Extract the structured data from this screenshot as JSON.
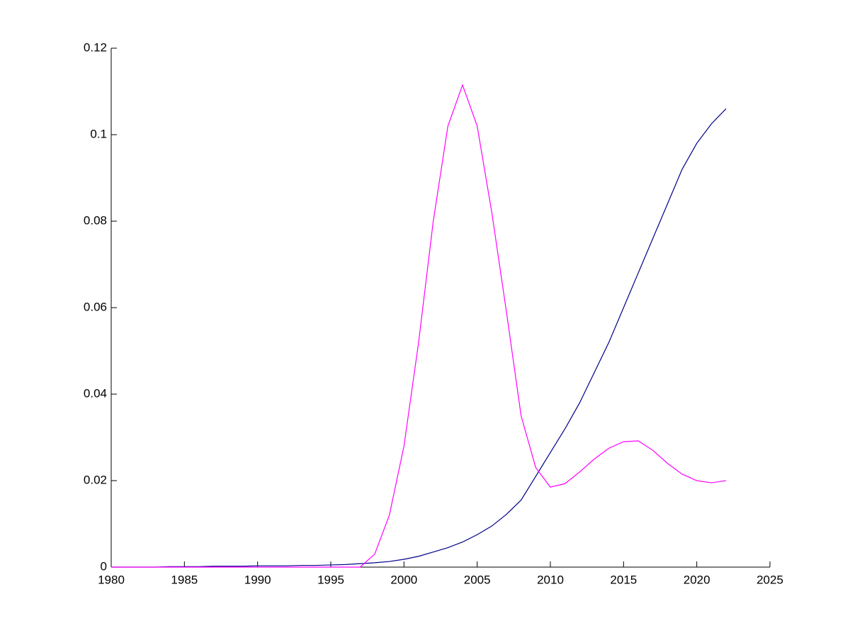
{
  "chart_data": {
    "type": "line",
    "x": [
      1980,
      1981,
      1982,
      1983,
      1984,
      1985,
      1986,
      1987,
      1988,
      1989,
      1990,
      1991,
      1992,
      1993,
      1994,
      1995,
      1996,
      1997,
      1998,
      1999,
      2000,
      2001,
      2002,
      2003,
      2004,
      2005,
      2006,
      2007,
      2008,
      2009,
      2010,
      2011,
      2012,
      2013,
      2014,
      2015,
      2016,
      2017,
      2018,
      2019,
      2020,
      2021,
      2022
    ],
    "series": [
      {
        "color": "#00008b",
        "values": [
          0,
          0,
          0,
          0,
          0.0001,
          0.0001,
          0.0001,
          0.0002,
          0.0002,
          0.0002,
          0.0003,
          0.0003,
          0.0003,
          0.0004,
          0.0004,
          0.0005,
          0.0006,
          0.0008,
          0.001,
          0.0013,
          0.0018,
          0.0025,
          0.0035,
          0.0045,
          0.0058,
          0.0075,
          0.0095,
          0.0122,
          0.0155,
          0.021,
          0.0265,
          0.032,
          0.038,
          0.045,
          0.052,
          0.06,
          0.068,
          0.076,
          0.084,
          0.092,
          0.098,
          0.1025,
          0.106
        ]
      },
      {
        "color": "#ff00ff",
        "values": [
          0,
          0,
          0,
          0,
          0,
          0,
          0,
          0,
          0,
          0,
          0,
          0,
          0,
          0,
          0,
          0,
          0,
          0,
          0.003,
          0.012,
          0.028,
          0.052,
          0.08,
          0.102,
          0.1115,
          0.102,
          0.082,
          0.059,
          0.035,
          0.023,
          0.0185,
          0.0193,
          0.022,
          0.025,
          0.0275,
          0.029,
          0.0292,
          0.027,
          0.024,
          0.0215,
          0.02,
          0.0195,
          0.02
        ]
      }
    ],
    "xlim": [
      1980,
      2025
    ],
    "xticks": [
      1980,
      1985,
      1990,
      1995,
      2000,
      2005,
      2010,
      2015,
      2020,
      2025
    ],
    "ylim": [
      0,
      0.12
    ],
    "yticks": [
      0,
      0.02,
      0.04,
      0.06,
      0.08,
      0.1,
      0.12
    ],
    "grid": false
  }
}
